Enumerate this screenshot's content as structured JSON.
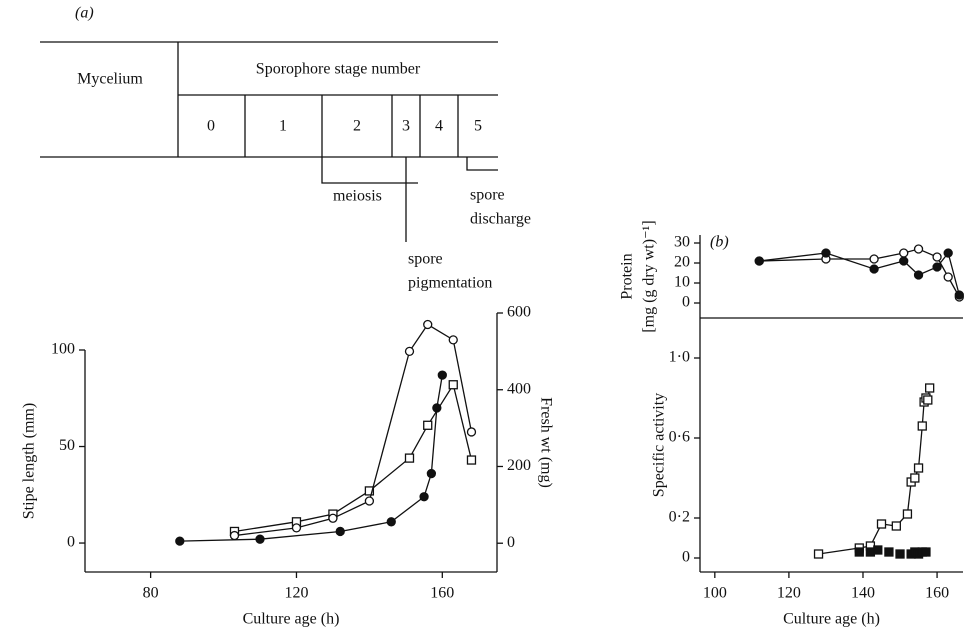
{
  "stage_diagram": {
    "panel_label": "(a)",
    "mycelium": "Mycelium",
    "header": "Sporophore stage number",
    "stages": [
      "0",
      "1",
      "2",
      "3",
      "4",
      "5"
    ],
    "events": [
      [
        "meiosis"
      ],
      [
        "spore",
        "pigmentation"
      ],
      [
        "spore",
        "discharge"
      ]
    ]
  },
  "chart_data": [
    {
      "type": "line",
      "xlabel": "Culture age (h)",
      "ylabel": "Stipe length (mm)",
      "y2label": "Fresh wt (mg)",
      "xlim": [
        62,
        175
      ],
      "xticks": [
        80,
        120,
        160
      ],
      "ylim": [
        -15,
        100
      ],
      "yticks": [
        0,
        50,
        100
      ],
      "y2lim": [
        -75,
        600
      ],
      "y2ticks": [
        0,
        200,
        400,
        600
      ],
      "series": [
        {
          "marker": "filled-circle",
          "color": "#111",
          "line": true,
          "x": [
            88,
            110,
            132,
            146,
            155,
            157,
            158.5,
            160
          ],
          "values": [
            1,
            2,
            6,
            11,
            24,
            36,
            70,
            87
          ]
        },
        {
          "marker": "open-square",
          "color": "#111",
          "line": true,
          "x": [
            103,
            120,
            130,
            140,
            151,
            156,
            163,
            168
          ],
          "values": [
            6,
            11,
            15,
            27,
            44,
            61,
            82,
            43
          ]
        },
        {
          "marker": "open-circle",
          "color": "#111",
          "line": true,
          "axis": "y2",
          "x": [
            103,
            120,
            130,
            140,
            151,
            156,
            163,
            168
          ],
          "values": [
            20,
            40,
            65,
            110,
            500,
            570,
            530,
            290
          ]
        }
      ]
    },
    {
      "type": "line",
      "title": "(b)",
      "ylabel": [
        "Protein",
        "[mg (g dry wt)⁻¹]"
      ],
      "xlim": [
        96,
        167
      ],
      "ylim": [
        -7.5,
        34
      ],
      "yticks": [
        0,
        10,
        20,
        30
      ],
      "series": [
        {
          "marker": "open-circle",
          "color": "#111",
          "line": true,
          "x": [
            112,
            130,
            143,
            151,
            155,
            160,
            163,
            166
          ],
          "values": [
            21,
            22,
            22,
            25,
            27,
            23,
            13,
            3
          ]
        },
        {
          "marker": "filled-circle",
          "color": "#111",
          "line": true,
          "x": [
            112,
            130,
            143,
            151,
            155,
            160,
            163,
            166
          ],
          "values": [
            21,
            25,
            17,
            21,
            14,
            18,
            25,
            4
          ]
        }
      ]
    },
    {
      "type": "line",
      "xlabel": "Culture age (h)",
      "ylabel": "Specific activity",
      "xlim": [
        96,
        167
      ],
      "xticks": [
        100,
        120,
        140,
        160
      ],
      "ylim": [
        -0.07,
        1.2
      ],
      "yticks": [
        0,
        {
          "value": 0.2,
          "label": "0·2"
        },
        {
          "value": 0.6,
          "label": "0·6"
        },
        {
          "value": 1.0,
          "label": "1·0"
        }
      ],
      "series": [
        {
          "marker": "open-square",
          "color": "#111",
          "line": true,
          "x": [
            128,
            139,
            142,
            145,
            149,
            152,
            153,
            154,
            155,
            156,
            156.5,
            157,
            157.5,
            158
          ],
          "values": [
            0.02,
            0.05,
            0.06,
            0.17,
            0.16,
            0.22,
            0.38,
            0.4,
            0.45,
            0.66,
            0.78,
            0.8,
            0.79,
            0.85
          ]
        },
        {
          "marker": "filled-square",
          "color": "#111",
          "line": false,
          "x": [
            139,
            142,
            144,
            147,
            150,
            153,
            154,
            155,
            156,
            157
          ],
          "values": [
            0.03,
            0.03,
            0.04,
            0.03,
            0.02,
            0.02,
            0.03,
            0.02,
            0.03,
            0.03
          ]
        }
      ]
    }
  ]
}
